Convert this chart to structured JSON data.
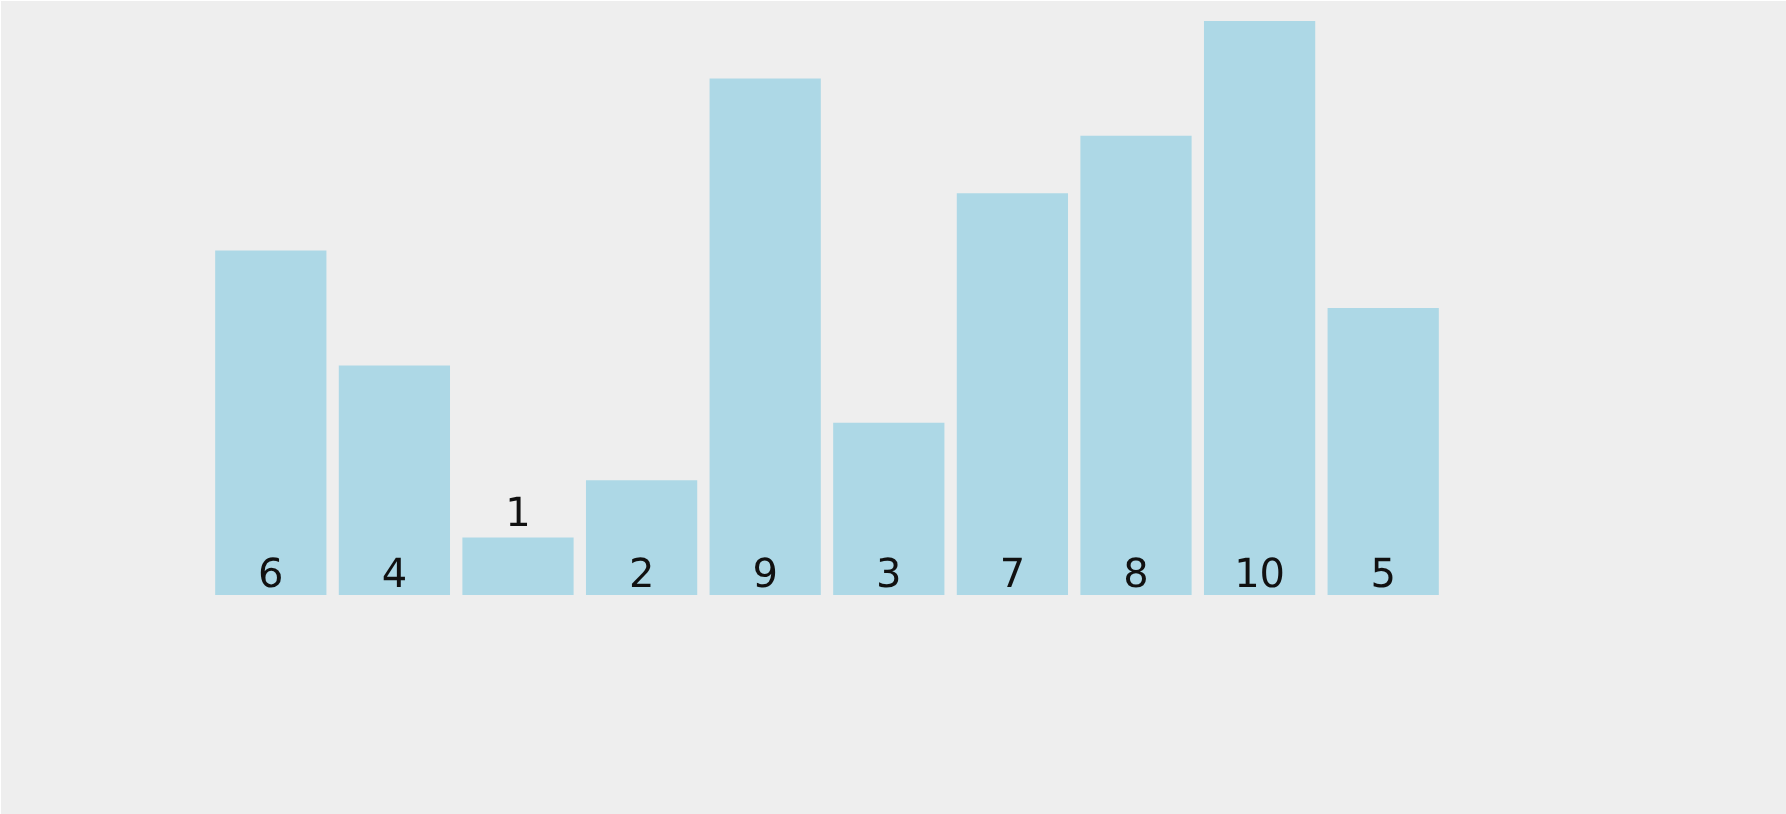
{
  "chart_data": {
    "type": "bar",
    "categories": [
      null,
      null,
      null,
      null,
      null,
      null,
      null,
      null,
      null,
      null
    ],
    "values": [
      6,
      4,
      1,
      2,
      9,
      3,
      7,
      8,
      10,
      5
    ],
    "color": "#add8e6",
    "data_labels": true,
    "grid": false
  }
}
